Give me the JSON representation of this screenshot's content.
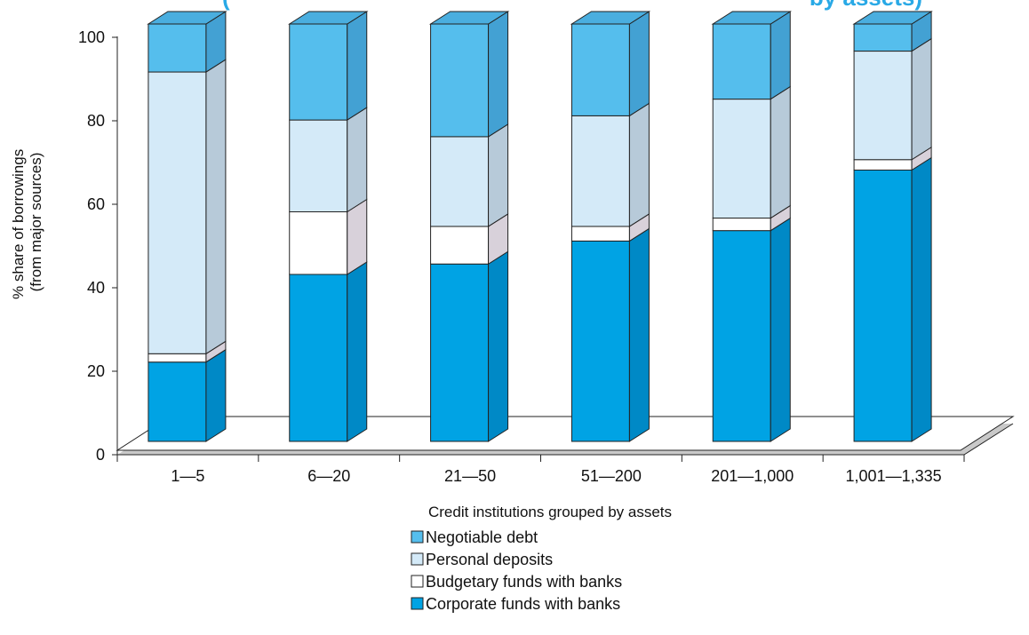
{
  "chart_data": {
    "type": "bar",
    "stacked": true,
    "title": "(",
    "title_right": "by assets)",
    "xlabel": "Credit institutions grouped by assets",
    "ylabel_line1": "% share of borrowings",
    "ylabel_line2": "(from major sources)",
    "ylim": [
      0,
      100
    ],
    "yticks": [
      "0",
      "20",
      "40",
      "60",
      "80",
      "100"
    ],
    "categories": [
      "1—5",
      "6—20",
      "21—50",
      "51—200",
      "201—1,000",
      "1,001—1,335"
    ],
    "series": [
      {
        "name": "Corporate funds with banks",
        "color": "#00a3e4",
        "values": [
          19,
          40,
          42.5,
          48,
          50.5,
          65
        ]
      },
      {
        "name": "Budgetary funds with banks",
        "color": "#ffffff",
        "values": [
          2,
          15,
          9,
          3.5,
          3,
          2.5
        ]
      },
      {
        "name": "Personal deposits",
        "color": "#d4eaf8",
        "values": [
          67.5,
          22,
          21.5,
          26.5,
          28.5,
          26
        ]
      },
      {
        "name": "Negotiable debt",
        "color": "#55beed",
        "values": [
          11.5,
          23,
          27,
          22,
          18,
          6.5
        ]
      }
    ],
    "legend": [
      {
        "name": "Negotiable debt",
        "color": "#55beed"
      },
      {
        "name": "Personal deposits",
        "color": "#d4eaf8"
      },
      {
        "name": "Budgetary funds with banks",
        "color": "#ffffff"
      },
      {
        "name": "Corporate funds with banks",
        "color": "#00a3e4"
      }
    ],
    "legend_position": "bottom",
    "grid": false
  }
}
